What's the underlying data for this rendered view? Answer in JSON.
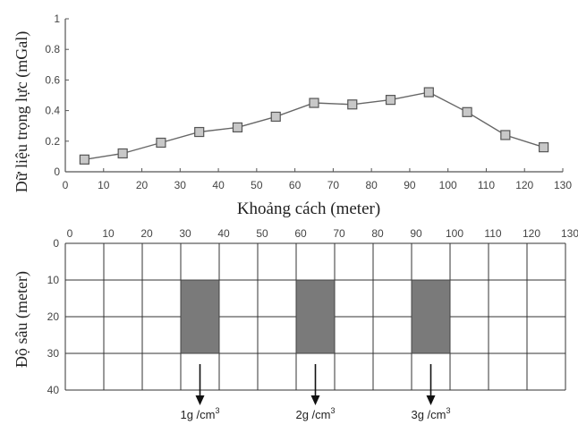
{
  "chart_data": [
    {
      "type": "line",
      "xlabel": "Khoảng cách (meter)",
      "ylabel": "Dữ liệu trọng lực (mGal)",
      "xlim": [
        0,
        130
      ],
      "ylim": [
        0,
        1
      ],
      "xticks": [
        "0",
        "10",
        "20",
        "30",
        "40",
        "50",
        "60",
        "70",
        "80",
        "90",
        "100",
        "110",
        "120",
        "130"
      ],
      "yticks": [
        "0",
        "0.2",
        "0.4",
        "0.6",
        "0.8",
        "1"
      ],
      "grid": false,
      "marker": "square",
      "x": [
        5,
        15,
        25,
        35,
        45,
        55,
        65,
        75,
        85,
        95,
        105,
        115,
        125
      ],
      "y": [
        0.08,
        0.12,
        0.19,
        0.26,
        0.29,
        0.36,
        0.45,
        0.44,
        0.47,
        0.52,
        0.39,
        0.24,
        0.16
      ]
    },
    {
      "type": "table",
      "ylabel": "Độ sâu (meter)",
      "xlim": [
        0,
        130
      ],
      "ylim": [
        0,
        40
      ],
      "xticks": [
        "0",
        "10",
        "20",
        "30",
        "40",
        "50",
        "60",
        "70",
        "80",
        "90",
        "100",
        "110",
        "120",
        "130"
      ],
      "yticks": [
        "0",
        "10",
        "20",
        "30",
        "40"
      ],
      "grid_step_x": 10,
      "grid_step_y": 10,
      "bodies": [
        {
          "x_range": [
            30,
            40
          ],
          "depth_range": [
            10,
            30
          ],
          "density_value": "1g /cm",
          "density_exp": "3"
        },
        {
          "x_range": [
            60,
            70
          ],
          "depth_range": [
            10,
            30
          ],
          "density_value": "2g /cm",
          "density_exp": "3"
        },
        {
          "x_range": [
            90,
            100
          ],
          "depth_range": [
            10,
            30
          ],
          "density_value": "3g /cm",
          "density_exp": "3"
        }
      ]
    }
  ],
  "colors": {
    "axis": "#555555",
    "line": "#666666",
    "marker_fill": "#c8c8c8",
    "marker_stroke": "#555555",
    "body_fill": "#7a7a7a",
    "grid": "#333333",
    "text": "#222222"
  }
}
